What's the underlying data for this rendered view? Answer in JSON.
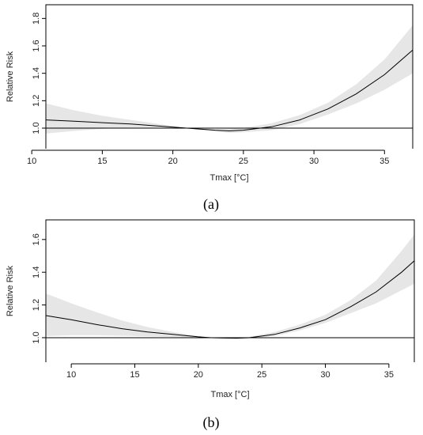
{
  "chart_data": [
    {
      "type": "line",
      "panel_label": "(a)",
      "xlabel": "Tmax [°C]",
      "ylabel": "Relative Risk",
      "xlim": [
        11,
        37
      ],
      "ylim": [
        0.85,
        1.9
      ],
      "xticks": [
        10,
        15,
        20,
        25,
        30,
        35
      ],
      "yticks": [
        1.0,
        1.2,
        1.4,
        1.6,
        1.8
      ],
      "reference_line": 1.0,
      "box": "top-right-left",
      "ci_color": "#e6e6e6",
      "line_color": "#000000",
      "series": [
        {
          "x": [
            11,
            13,
            15,
            17,
            19,
            21,
            23,
            24,
            25,
            27,
            29,
            31,
            33,
            35,
            37
          ],
          "y": [
            1.06,
            1.05,
            1.04,
            1.03,
            1.015,
            1.0,
            0.985,
            0.98,
            0.985,
            1.01,
            1.06,
            1.14,
            1.25,
            1.39,
            1.57
          ],
          "lower": [
            0.96,
            0.98,
            0.995,
            1.005,
            1.005,
            1.0,
            0.975,
            0.965,
            0.97,
            0.985,
            1.03,
            1.1,
            1.18,
            1.28,
            1.4
          ],
          "upper": [
            1.18,
            1.13,
            1.09,
            1.06,
            1.03,
            1.0,
            0.99,
            0.995,
            1.0,
            1.035,
            1.095,
            1.185,
            1.32,
            1.5,
            1.75
          ]
        }
      ]
    },
    {
      "type": "line",
      "panel_label": "(b)",
      "xlabel": "Tmax [°C]",
      "ylabel": "Relative Risk",
      "xlim": [
        8,
        37
      ],
      "ylim": [
        0.85,
        1.72
      ],
      "xticks": [
        10,
        15,
        20,
        25,
        30,
        35
      ],
      "yticks": [
        1.0,
        1.2,
        1.4,
        1.6
      ],
      "reference_line": 1.0,
      "box": "top-right-left",
      "ci_color": "#e6e6e6",
      "line_color": "#000000",
      "series": [
        {
          "x": [
            8,
            10,
            12,
            14,
            16,
            18,
            20,
            21,
            22,
            23,
            24,
            26,
            28,
            30,
            32,
            34,
            36,
            37
          ],
          "y": [
            1.135,
            1.11,
            1.08,
            1.055,
            1.035,
            1.02,
            1.005,
            1.0,
            0.998,
            0.997,
            1.0,
            1.02,
            1.06,
            1.11,
            1.19,
            1.28,
            1.4,
            1.47
          ],
          "lower": [
            1.01,
            1.015,
            1.015,
            1.012,
            1.008,
            1.004,
            1.0,
            1.0,
            0.996,
            0.994,
            0.996,
            1.01,
            1.045,
            1.09,
            1.15,
            1.21,
            1.29,
            1.33
          ],
          "upper": [
            1.27,
            1.21,
            1.155,
            1.105,
            1.065,
            1.035,
            1.01,
            1.0,
            1.0,
            1.0,
            1.005,
            1.035,
            1.08,
            1.14,
            1.23,
            1.35,
            1.53,
            1.63
          ]
        }
      ]
    }
  ]
}
